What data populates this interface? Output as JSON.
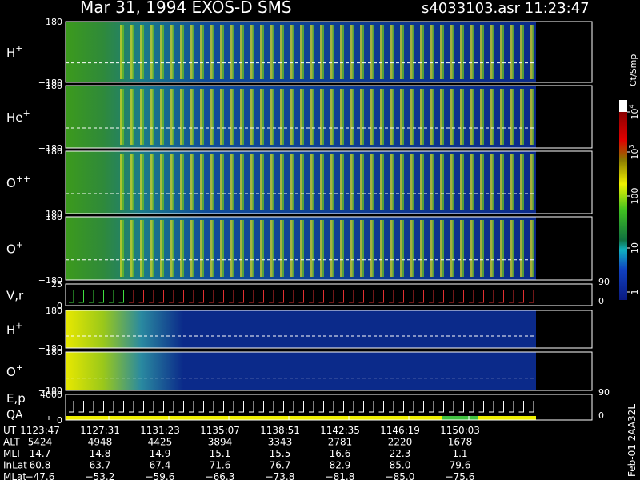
{
  "header": {
    "title": "Mar 31, 1994   EXOS-D SMS",
    "file": "s4033103.asr  11:23:47"
  },
  "panels": [
    {
      "label": "H",
      "sup": "+",
      "ytop": "180",
      "ybottom": "−180"
    },
    {
      "label": "He",
      "sup": "+",
      "ytop": "180",
      "ybottom": "−180"
    },
    {
      "label": "O",
      "sup": "++",
      "ytop": "180",
      "ybottom": "−180"
    },
    {
      "label": "O",
      "sup": "+",
      "ytop": "180",
      "ybottom": "−180"
    },
    {
      "label": "V,r",
      "ytop": "25",
      "ybottom": "0",
      "rtop": "90",
      "rbottom": "0"
    },
    {
      "label": "H",
      "sup": "+",
      "ytop": "180",
      "ybottom": "−180"
    },
    {
      "label": "O",
      "sup": "+",
      "ytop": "180",
      "ybottom": "−180"
    },
    {
      "label": "E,p",
      "label2": "QA",
      "ytop": "4000",
      "ybottom": "0",
      "rtop": "90",
      "rbottom": "0"
    }
  ],
  "colorbar": {
    "title": "Ct/Smp",
    "ticks": [
      {
        "base": "10",
        "exp": "4"
      },
      {
        "base": "10",
        "exp": "3"
      },
      {
        "base": "100"
      },
      {
        "base": "10"
      },
      {
        "base": "1"
      }
    ]
  },
  "table": {
    "rows": [
      [
        "UT",
        "1123:47",
        "1127:31",
        "1131:23",
        "1135:07",
        "1138:51",
        "1142:35",
        "1146:19",
        "1150:03"
      ],
      [
        "ALT",
        "5424",
        "4948",
        "4425",
        "3894",
        "3343",
        "2781",
        "2220",
        "1678"
      ],
      [
        "MLT",
        "14.7",
        "14.8",
        "14.9",
        "15.1",
        "15.5",
        "16.6",
        "22.3",
        "1.1"
      ],
      [
        "InLat",
        "60.8",
        "63.7",
        "67.4",
        "71.6",
        "76.7",
        "82.9",
        "85.0",
        "79.6"
      ],
      [
        "MLat",
        "−47.6",
        "−53.2",
        "−59.6",
        "−66.3",
        "−73.8",
        "−81.8",
        "−85.0",
        "−75.6"
      ]
    ]
  },
  "footer": "Feb-01 2AA32L"
}
